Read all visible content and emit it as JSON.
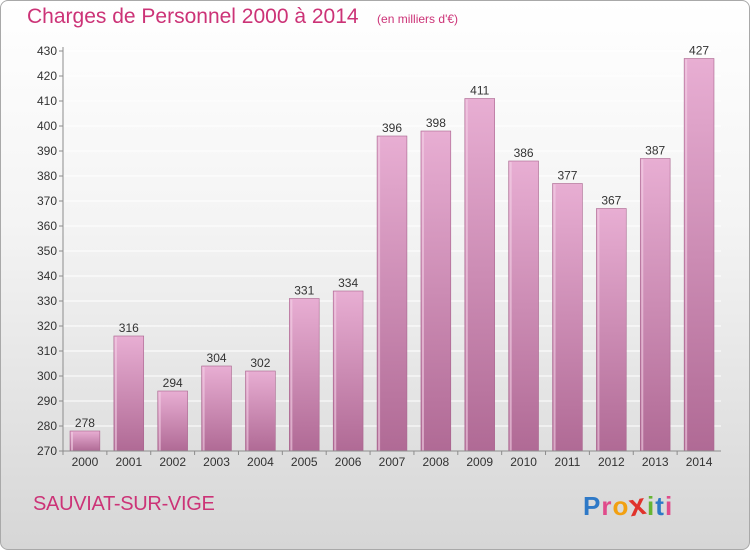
{
  "header": {
    "title": "Charges de Personnel 2000 à 2014",
    "subtitle": "(en milliers d'€)"
  },
  "footer": {
    "place": "SAUVIAT-SUR-VIGE",
    "logo_letters": [
      "P",
      "r",
      "o",
      "x",
      "i",
      "t",
      "i"
    ],
    "logo_colors": [
      "#2e79c7",
      "#e04b8b",
      "#f2a011",
      "#e0332c",
      "#66b532",
      "#2e79c7",
      "#e04b8b"
    ]
  },
  "colors": {
    "bar_top": "#e8aed3",
    "bar_bottom": "#b06a95",
    "bar_edge": "#a8648d",
    "axis": "#8c8c8c",
    "grid": "#ffffff",
    "text": "#333333"
  },
  "chart_data": {
    "type": "bar",
    "title": "Charges de Personnel 2000 à 2014",
    "subtitle": "(en milliers d'€)",
    "categories": [
      "2000",
      "2001",
      "2002",
      "2003",
      "2004",
      "2005",
      "2006",
      "2007",
      "2008",
      "2009",
      "2010",
      "2011",
      "2012",
      "2013",
      "2014"
    ],
    "values": [
      278,
      316,
      294,
      304,
      302,
      331,
      334,
      396,
      398,
      411,
      386,
      377,
      367,
      387,
      427
    ],
    "ylim": [
      270,
      430
    ],
    "yticks": [
      270,
      280,
      290,
      300,
      310,
      320,
      330,
      340,
      350,
      360,
      370,
      380,
      390,
      400,
      410,
      420,
      430
    ],
    "grid": true,
    "data_labels": true
  }
}
